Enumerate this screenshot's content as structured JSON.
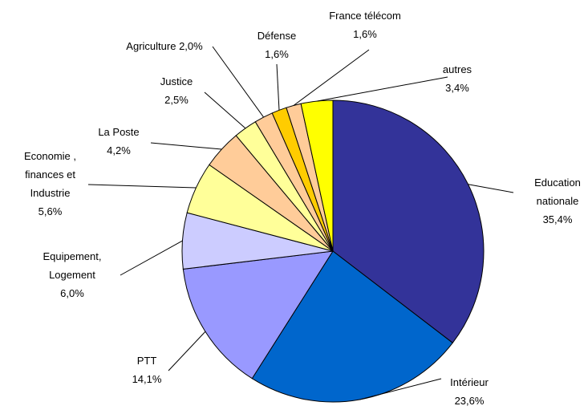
{
  "chart_data": {
    "type": "pie",
    "categories": [
      "Education nationale",
      "Intérieur",
      "PTT",
      "Equipement, Logement",
      "Economie , finances et Industrie",
      "La Poste",
      "Justice",
      "Agriculture",
      "Défense",
      "France télécom",
      "autres"
    ],
    "values": [
      35.4,
      23.6,
      14.1,
      6.0,
      5.6,
      4.2,
      2.5,
      2.0,
      1.6,
      1.6,
      3.4
    ],
    "value_labels": [
      "35,4%",
      "23,6%",
      "14,1%",
      "6,0%",
      "5,6%",
      "4,2%",
      "2,5%",
      "2,0%",
      "1,6%",
      "1,6%",
      "3,4%"
    ],
    "colors": [
      "#333399",
      "#0066cc",
      "#9999ff",
      "#ccccff",
      "#ffff99",
      "#ffcc99",
      "#ffff99",
      "#ffcc99",
      "#ffcc00",
      "#ffcc99",
      "#ffff00"
    ]
  }
}
